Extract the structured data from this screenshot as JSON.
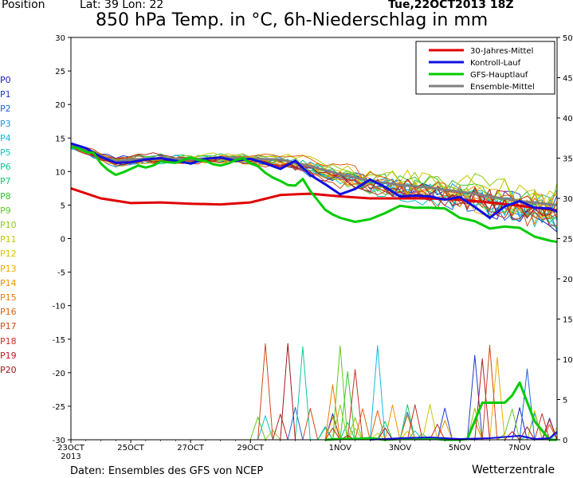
{
  "header": {
    "position_label": "Position",
    "latlon": "Lat: 39 Lon: 22",
    "title": "850 hPa Temp. in °C, 6h-Niederschlag in mm",
    "date": "Tue,22OCT2013 18Z"
  },
  "footer": {
    "source": "Daten: Ensembles des GFS von NCEP",
    "brand": "Wetterzentrale"
  },
  "colors": {
    "mean30": "#e00000",
    "control": "#1010e0",
    "gfs": "#00cc00",
    "ensmean": "#808080"
  },
  "members": [
    {
      "label": "P0",
      "color": "#2020c0"
    },
    {
      "label": "P1",
      "color": "#1a3cd0"
    },
    {
      "label": "P2",
      "color": "#1a66e0"
    },
    {
      "label": "P3",
      "color": "#1a90e8"
    },
    {
      "label": "P4",
      "color": "#10b8e0"
    },
    {
      "label": "P5",
      "color": "#10c8c0"
    },
    {
      "label": "P6",
      "color": "#10c898"
    },
    {
      "label": "P7",
      "color": "#10c870"
    },
    {
      "label": "P8",
      "color": "#30c830"
    },
    {
      "label": "P9",
      "color": "#60c820"
    },
    {
      "label": "P10",
      "color": "#90c810"
    },
    {
      "label": "P11",
      "color": "#c8c800"
    },
    {
      "label": "P12",
      "color": "#e0c000"
    },
    {
      "label": "P13",
      "color": "#f0a800"
    },
    {
      "label": "P14",
      "color": "#f09000"
    },
    {
      "label": "P15",
      "color": "#f07800"
    },
    {
      "label": "P16",
      "color": "#e06010"
    },
    {
      "label": "P17",
      "color": "#d04818"
    },
    {
      "label": "P18",
      "color": "#c83020"
    },
    {
      "label": "P19",
      "color": "#b82020"
    },
    {
      "label": "P20",
      "color": "#a01818"
    }
  ],
  "chart_data": {
    "type": "line",
    "title": "850 hPa Temp. in °C, 6h-Niederschlag in mm",
    "y_left": {
      "min": -30,
      "max": 30,
      "ticks": [
        30,
        25,
        20,
        15,
        10,
        5,
        0,
        -5,
        -10,
        -15,
        -20,
        -25,
        -30
      ]
    },
    "y_right": {
      "min": 0,
      "max": 50,
      "ticks": [
        50,
        45,
        40,
        35,
        30,
        25,
        20,
        15,
        10,
        5,
        0
      ]
    },
    "x": {
      "min": 0,
      "max": 16.25,
      "unit": "days from 23OCT 00Z",
      "tick_labels": [
        {
          "day": 0,
          "label": "23OCT",
          "sub": "2013"
        },
        {
          "day": 2,
          "label": "25OCT"
        },
        {
          "day": 4,
          "label": "27OCT"
        },
        {
          "day": 6,
          "label": "29OCT"
        },
        {
          "day": 9,
          "label": "1NOV"
        },
        {
          "day": 11,
          "label": "3NOV"
        },
        {
          "day": 13,
          "label": "5NOV"
        },
        {
          "day": 15,
          "label": "7NOV"
        }
      ]
    },
    "legend": {
      "placement": "top-right",
      "entries": [
        "30-Jahres-Mittel",
        "Kontroll-Lauf",
        "GFS-Hauptlauf",
        "Ensemble-Mittel"
      ]
    },
    "series": [
      {
        "name": "30-Jahres-Mittel",
        "axis": "left",
        "key": "mean30",
        "width": 3,
        "x": [
          0,
          1,
          2,
          3,
          4,
          5,
          6,
          7,
          8,
          9,
          10,
          11,
          12,
          13,
          14,
          15,
          16.25
        ],
        "y": [
          7.5,
          6,
          5.3,
          5.4,
          5.2,
          5.1,
          5.4,
          6.5,
          6.7,
          6.3,
          6,
          6,
          6,
          5.8,
          5.4,
          4.9,
          4.2
        ]
      },
      {
        "name": "Ensemble-Mittel",
        "axis": "left",
        "key": "ensmean",
        "width": 3,
        "x": [
          0,
          0.5,
          1,
          1.5,
          2,
          3,
          4,
          5,
          6,
          7,
          8,
          9,
          10,
          11,
          12,
          13,
          14,
          15,
          16.25
        ],
        "y": [
          13.8,
          13.2,
          12.3,
          11.5,
          11.8,
          12,
          11.8,
          12.1,
          11.9,
          11.8,
          10.8,
          9.6,
          8.6,
          8,
          7.6,
          7,
          6.3,
          5.6,
          5
        ]
      },
      {
        "name": "Kontroll-Lauf",
        "axis": "left",
        "key": "control",
        "width": 3,
        "x": [
          0,
          0.5,
          1,
          1.5,
          2,
          2.5,
          3,
          3.5,
          4,
          4.5,
          5,
          5.5,
          6,
          6.5,
          7,
          7.5,
          8,
          8.5,
          9,
          9.5,
          10,
          10.5,
          11,
          11.5,
          12,
          12.5,
          13,
          13.5,
          14,
          14.5,
          15,
          15.5,
          16,
          16.25
        ],
        "y": [
          14.2,
          13.5,
          12.2,
          11.3,
          11.4,
          11.8,
          12,
          11.6,
          11.2,
          11.9,
          12.1,
          11.6,
          11.9,
          11.2,
          10.4,
          11.6,
          9.5,
          8.1,
          6.6,
          7.4,
          8.8,
          7.7,
          6.3,
          6.4,
          6.3,
          5.8,
          6.2,
          4.7,
          3.1,
          4.8,
          5.6,
          4.6,
          4.5,
          4
        ]
      },
      {
        "name": "GFS-Hauptlauf",
        "axis": "left",
        "key": "gfs",
        "width": 3,
        "x": [
          0,
          0.25,
          0.5,
          0.75,
          1,
          1.25,
          1.5,
          1.75,
          2,
          2.25,
          2.5,
          2.75,
          3,
          3.25,
          3.5,
          3.75,
          4,
          4.25,
          4.5,
          4.75,
          5,
          5.25,
          5.5,
          5.75,
          6,
          6.25,
          6.5,
          6.75,
          7,
          7.25,
          7.5,
          7.75,
          8,
          8.25,
          8.5,
          8.75,
          9,
          9.5,
          10,
          10.5,
          11,
          11.5,
          12,
          12.5,
          13,
          13.5,
          14,
          14.5,
          15,
          15.5,
          16,
          16.25
        ],
        "y": [
          13.7,
          13.5,
          12.9,
          12.8,
          11.2,
          10.2,
          9.5,
          9.9,
          10.4,
          10.9,
          10.6,
          10.9,
          11.5,
          11.4,
          11.3,
          11.7,
          12.1,
          11.7,
          11.6,
          11.1,
          10.9,
          11.2,
          11.7,
          12,
          11.2,
          10.8,
          9.8,
          9.1,
          8.6,
          8,
          7.9,
          8.9,
          7.1,
          5.7,
          4.3,
          3.6,
          3.1,
          2.5,
          2.9,
          3.8,
          4.9,
          4.6,
          4.6,
          4.5,
          3.1,
          2.6,
          1.5,
          1.8,
          1.6,
          0.3,
          -0.3,
          -0.5
        ]
      }
    ],
    "precip_series": [
      {
        "name": "GFS-Hauptlauf",
        "axis": "right",
        "key": "gfs",
        "x": [
          8.5,
          9,
          9.5,
          10,
          10.5,
          11,
          11.5,
          12,
          12.5,
          13,
          13.25,
          13.75,
          14,
          14.5,
          14.75,
          15,
          15.5,
          16,
          16.25
        ],
        "y": [
          0,
          0.1,
          0.1,
          0.2,
          0,
          0.1,
          0.2,
          0.2,
          0,
          0,
          0.1,
          4.6,
          4.6,
          4.6,
          5.5,
          7.1,
          2.3,
          0,
          0
        ]
      },
      {
        "name": "Kontroll-Lauf",
        "axis": "right",
        "key": "control",
        "x": [
          10,
          11,
          12,
          13,
          14,
          15,
          15.5,
          16,
          16.25
        ],
        "y": [
          0,
          0.2,
          0.3,
          0.1,
          0.2,
          0.5,
          0.1,
          0.2,
          1
        ]
      }
    ]
  }
}
